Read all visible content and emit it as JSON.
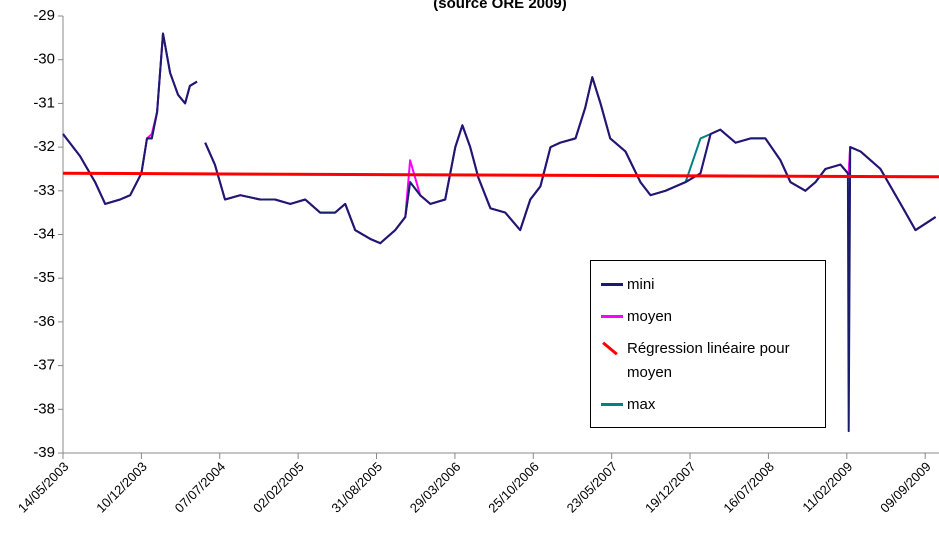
{
  "chart_data": {
    "type": "line",
    "title": "(source ORE 2009)",
    "x": [
      "14/05/2003",
      "28/06/2003",
      "08/08/2003",
      "04/09/2003",
      "14/10/2003",
      "10/11/2003",
      "10/12/2003",
      "25/12/2003",
      "07/01/2004",
      "21/01/2004",
      "06/02/2004",
      "25/02/2004",
      "17/03/2004",
      "05/04/2004",
      "18/04/2004",
      "07/05/2004",
      "18/05/2004",
      "29/05/2004",
      "24/06/2004",
      "21/07/2004",
      "31/08/2004",
      "23/10/2004",
      "02/12/2004",
      "12/01/2005",
      "21/02/2005",
      "02/04/2005",
      "12/05/2005",
      "08/06/2005",
      "05/07/2005",
      "14/08/2005",
      "10/09/2005",
      "20/10/2005",
      "16/11/2005",
      "29/11/2005",
      "26/12/2005",
      "22/01/2006",
      "03/03/2006",
      "30/03/2006",
      "18/04/2006",
      "09/05/2006",
      "31/05/2006",
      "02/07/2006",
      "11/08/2006",
      "20/09/2006",
      "17/10/2006",
      "13/11/2006",
      "10/12/2006",
      "05/01/2007",
      "15/02/2007",
      "13/03/2007",
      "01/04/2007",
      "23/04/2007",
      "19/05/2007",
      "29/06/2007",
      "08/08/2007",
      "04/09/2007",
      "14/10/2007",
      "07/12/2007",
      "16/01/2008",
      "12/02/2008",
      "09/03/2008",
      "19/04/2008",
      "29/05/2008",
      "08/07/2008",
      "17/08/2008",
      "13/09/2008",
      "23/10/2008",
      "19/11/2008",
      "16/12/2008",
      "25/01/2009",
      "14/02/2009",
      "16/02/2009",
      "20/02/2009",
      "20/03/2009",
      "12/05/2009",
      "05/07/2009",
      "14/08/2009",
      "07/10/2009"
    ],
    "series": [
      {
        "name": "mini",
        "color": "#1a1a6e",
        "values": [
          -31.7,
          -32.2,
          -32.8,
          -33.3,
          -33.2,
          -33.1,
          -32.6,
          -31.8,
          -31.8,
          -31.2,
          -29.4,
          -30.3,
          -30.8,
          -31.0,
          -30.6,
          -30.5,
          null,
          -31.9,
          -32.4,
          -33.2,
          -33.1,
          -33.2,
          -33.2,
          -33.3,
          -33.2,
          -33.5,
          -33.5,
          -33.3,
          -33.9,
          -34.1,
          -34.2,
          -33.9,
          -33.6,
          -32.8,
          -33.1,
          -33.3,
          -33.2,
          -32.0,
          -31.5,
          -32.0,
          -32.7,
          -33.4,
          -33.5,
          -33.9,
          -33.2,
          -32.9,
          -32.0,
          -31.9,
          -31.8,
          -31.1,
          -30.4,
          -31.0,
          -31.8,
          -32.1,
          -32.8,
          -33.1,
          -33.0,
          -32.8,
          -32.6,
          -31.7,
          -31.6,
          -31.9,
          -31.8,
          -31.8,
          -32.3,
          -32.8,
          -33.0,
          -32.8,
          -32.5,
          -32.4,
          -32.6,
          -38.5,
          -32.0,
          -32.1,
          -32.5,
          -33.3,
          -33.9,
          -33.6
        ]
      },
      {
        "name": "moyen",
        "color": "#ff00ff",
        "values": [
          -31.7,
          -32.2,
          -32.8,
          -33.3,
          -33.2,
          -33.1,
          -32.6,
          -31.8,
          -31.7,
          -31.2,
          -29.4,
          -30.3,
          -30.8,
          -31.0,
          -30.6,
          -30.5,
          null,
          -31.9,
          -32.4,
          -33.2,
          -33.1,
          -33.2,
          -33.2,
          -33.3,
          -33.2,
          -33.5,
          -33.5,
          -33.3,
          -33.9,
          -34.1,
          -34.2,
          -33.9,
          -33.6,
          -32.3,
          -33.1,
          -33.3,
          -33.2,
          -32.0,
          -31.5,
          -32.0,
          -32.7,
          -33.4,
          -33.5,
          -33.9,
          -33.2,
          -32.9,
          -32.0,
          -31.9,
          -31.8,
          -31.1,
          -30.4,
          -31.0,
          -31.8,
          -32.1,
          -32.8,
          -33.1,
          -33.0,
          -32.8,
          -32.6,
          -31.7,
          -31.6,
          -31.9,
          -31.8,
          -31.8,
          -32.3,
          -32.8,
          -33.0,
          -32.8,
          -32.5,
          -32.4,
          -32.6,
          -32.6,
          -32.0,
          -32.1,
          -32.5,
          -33.3,
          -33.9,
          -33.6
        ]
      },
      {
        "name": "Régression linéaire pour moyen",
        "color": "#ff0000",
        "x": [
          "14/05/2003",
          "16/10/2009"
        ],
        "values": [
          -32.6,
          -32.68
        ]
      },
      {
        "name": "max",
        "color": "#008080",
        "values": [
          -31.7,
          -32.2,
          -32.8,
          -33.3,
          -33.2,
          -33.1,
          -32.6,
          -31.8,
          -31.8,
          -31.2,
          -29.4,
          -30.3,
          -30.8,
          -31.0,
          -30.6,
          -30.5,
          null,
          -31.9,
          -32.4,
          -33.2,
          -33.1,
          -33.2,
          -33.2,
          -33.3,
          -33.2,
          -33.5,
          -33.5,
          -33.3,
          -33.9,
          -34.1,
          -34.2,
          -33.9,
          -33.6,
          -32.8,
          -33.1,
          -33.3,
          -33.2,
          -32.0,
          -31.5,
          -32.0,
          -32.7,
          -33.4,
          -33.5,
          -33.9,
          -33.2,
          -32.9,
          -32.0,
          -31.9,
          -31.8,
          -31.1,
          -30.4,
          -31.0,
          -31.8,
          -32.1,
          -32.8,
          -33.1,
          -33.0,
          -32.8,
          -31.8,
          -31.7,
          -31.6,
          -31.9,
          -31.8,
          -31.8,
          -32.3,
          -32.8,
          -33.0,
          -32.8,
          -32.5,
          -32.4,
          -32.6,
          -32.6,
          -32.0,
          -32.1,
          -32.5,
          -33.3,
          -33.9,
          -33.6
        ]
      }
    ],
    "xlim": [
      "14/05/2003",
      "16/10/2009"
    ],
    "xticks": [
      "14/05/2003",
      "10/12/2003",
      "07/07/2004",
      "02/02/2005",
      "31/08/2005",
      "29/03/2006",
      "25/10/2006",
      "23/05/2007",
      "19/12/2007",
      "16/07/2008",
      "11/02/2009",
      "09/09/2009"
    ],
    "ylim": [
      -39,
      -29
    ],
    "yticks": [
      -39,
      -38,
      -37,
      -36,
      -35,
      -34,
      -33,
      -32,
      -31,
      -30,
      -29
    ],
    "grid": false
  }
}
